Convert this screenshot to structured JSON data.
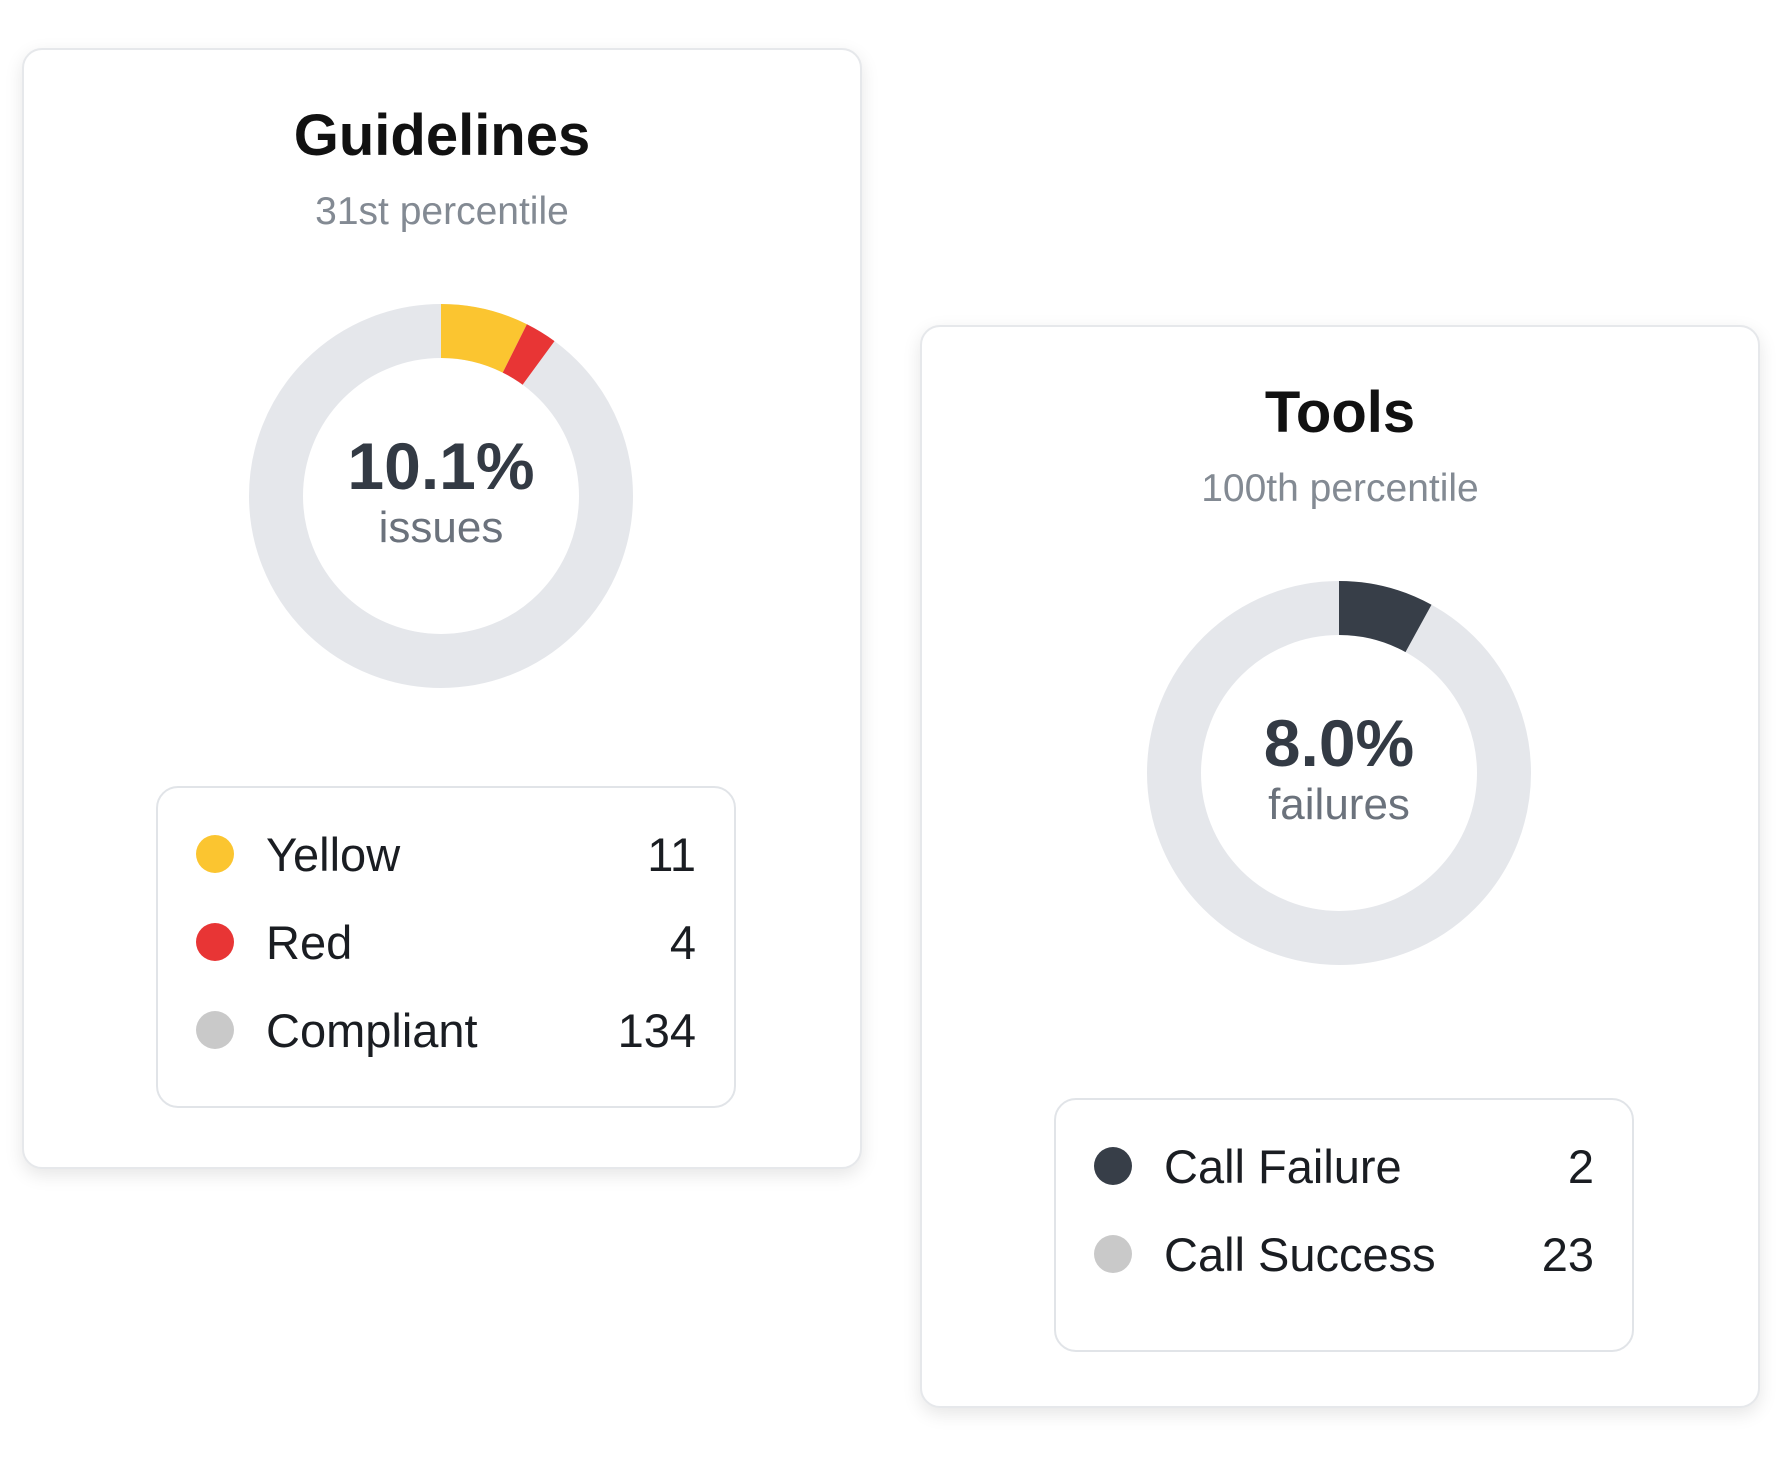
{
  "cards": [
    {
      "id": "guidelines",
      "title": "Guidelines",
      "subtitle": "31st percentile",
      "center_value": "10.1%",
      "center_label": "issues",
      "track_color": "#e5e7eb",
      "legend": [
        {
          "label": "Yellow",
          "count": "11",
          "value": 11,
          "color": "#fbc530"
        },
        {
          "label": "Red",
          "count": "4",
          "value": 4,
          "color": "#e83535"
        },
        {
          "label": "Compliant",
          "count": "134",
          "value": 134,
          "color": "#c9c9c9"
        }
      ],
      "arc_items": [
        0,
        1
      ]
    },
    {
      "id": "tools",
      "title": "Tools",
      "subtitle": "100th percentile",
      "center_value": "8.0%",
      "center_label": "failures",
      "track_color": "#e5e7eb",
      "legend": [
        {
          "label": "Call Failure",
          "count": "2",
          "value": 2,
          "color": "#373e48"
        },
        {
          "label": "Call Success",
          "count": "23",
          "value": 23,
          "color": "#c9c9c9"
        }
      ],
      "arc_items": [
        0
      ]
    }
  ]
}
